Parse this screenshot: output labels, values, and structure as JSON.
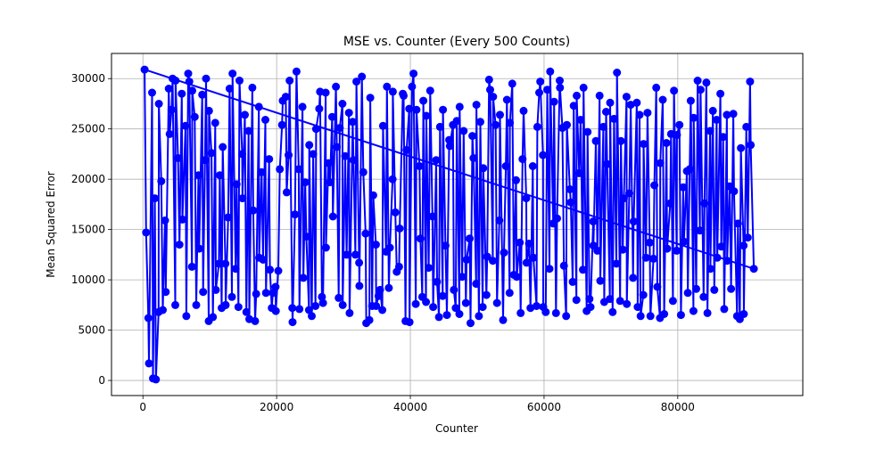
{
  "chart_data": {
    "type": "line",
    "title": "MSE vs. Counter (Every 500 Counts)",
    "xlabel": "Counter",
    "ylabel": "Mean Squared Error",
    "xlim": [
      -4700,
      98700
    ],
    "ylim": [
      -1500,
      32500
    ],
    "xticks": [
      0,
      20000,
      40000,
      60000,
      80000
    ],
    "yticks": [
      0,
      5000,
      10000,
      15000,
      20000,
      25000,
      30000
    ],
    "grid": true,
    "marker": "circle",
    "color": "#0000ff",
    "series": [
      {
        "name": "",
        "values": [
          30900,
          14700,
          6200,
          1700,
          28600,
          200,
          18100,
          100,
          6800,
          27500,
          19800,
          7000,
          15900,
          8800,
          29000,
          24500,
          26900,
          30000,
          7500,
          29800,
          22100,
          13500,
          28500,
          16000,
          25300,
          6400,
          30500,
          29700,
          11300,
          28800,
          26200,
          7500,
          20400,
          13100,
          28400,
          8800,
          21900,
          30000,
          5900,
          26800,
          22600,
          6300,
          25600,
          9000,
          11600,
          20400,
          7200,
          23200,
          11600,
          7500,
          16200,
          29000,
          8300,
          30500,
          11100,
          19500,
          7300,
          29800,
          22500,
          18100,
          26400,
          6800,
          24800,
          6100,
          29100,
          16900,
          5900,
          8600,
          27200,
          12200,
          20700,
          12000,
          25900,
          8700,
          22000,
          11000,
          7200,
          8700,
          9300,
          6900,
          10900,
          21000,
          25400,
          27800,
          28200,
          18700,
          22400,
          29800,
          7200,
          5800,
          16500,
          30700,
          21000,
          7100,
          27200,
          10200,
          19700,
          14300,
          7000,
          23400,
          6400,
          22500,
          7400,
          25000,
          27000,
          28700,
          8300,
          7700,
          28600,
          13200,
          21600,
          19700,
          26200,
          16300,
          29200,
          23200,
          8200,
          25100,
          27500,
          7500,
          22300,
          12500,
          26600,
          6700,
          25700,
          21900,
          12500,
          29700,
          11700,
          9400,
          30200,
          20700,
          14600,
          5700,
          6000,
          28100,
          7400,
          18400,
          13500,
          7400,
          8400,
          9000,
          7000,
          25300,
          12800,
          29200,
          9200,
          13200,
          20000,
          28700,
          16700,
          10800,
          11300,
          15100,
          28500,
          28300,
          5900,
          22900,
          27000,
          5800,
          29200,
          30500,
          7600,
          26900,
          21300,
          14100,
          8300,
          27800,
          7800,
          26300,
          11200,
          28800,
          16300,
          7300,
          21900,
          9800,
          6300,
          25200,
          8400,
          26900,
          13400,
          6500,
          23900,
          23300,
          25400,
          9000,
          7200,
          25800,
          6600,
          27200,
          10300,
          24800,
          7700,
          12000,
          14100,
          5700,
          24300,
          22100,
          9600,
          27400,
          6400,
          25700,
          7300,
          21100,
          8500,
          12300,
          29900,
          28900,
          11900,
          28200,
          25400,
          7700,
          15900,
          26400,
          6000,
          12700,
          21300,
          27900,
          8700,
          25600,
          29500,
          10500,
          19900,
          10300,
          13700,
          6700,
          22000,
          26800,
          18100,
          11700,
          13600,
          7200,
          21300,
          12200,
          7400,
          25200,
          28600,
          29700,
          22400,
          7300,
          6800,
          28900,
          11100,
          30700,
          15600,
          27700,
          6700,
          16100,
          29800,
          29100,
          25100,
          11400,
          6400,
          25400,
          19000,
          17700,
          9800,
          27300,
          8000,
          28300,
          20600,
          25900,
          11000,
          29100,
          6900,
          24700,
          8100,
          7300,
          15800,
          13400,
          23800,
          12900,
          28300,
          9900,
          25200,
          7800,
          26700,
          21500,
          8100,
          27600,
          6800,
          26000,
          11600,
          30600,
          7900,
          23800,
          13000,
          18100,
          28200,
          7600,
          18600,
          27400,
          10200,
          15800,
          27600,
          7300,
          26400,
          6400,
          8500,
          23500,
          12200,
          26600,
          13700,
          6400,
          12100,
          19400,
          29100,
          9300,
          6200,
          21600,
          27900,
          6600,
          23600,
          13100,
          17600,
          24500,
          7900,
          28800,
          12900,
          24400,
          25400,
          6500,
          19200,
          13800,
          20800,
          8700,
          21000,
          27800,
          6900,
          26100,
          9100,
          29800,
          14900,
          28900,
          8300,
          17600,
          29600,
          6700,
          24800,
          11100,
          26800,
          9000,
          25900,
          12200,
          28500,
          13300,
          24200,
          7100,
          26400,
          11900,
          19300,
          9100,
          26500,
          18800,
          6400,
          15600,
          6100,
          23100,
          13400,
          6600,
          25200,
          14200,
          29700,
          23400,
          11100
        ]
      }
    ]
  }
}
